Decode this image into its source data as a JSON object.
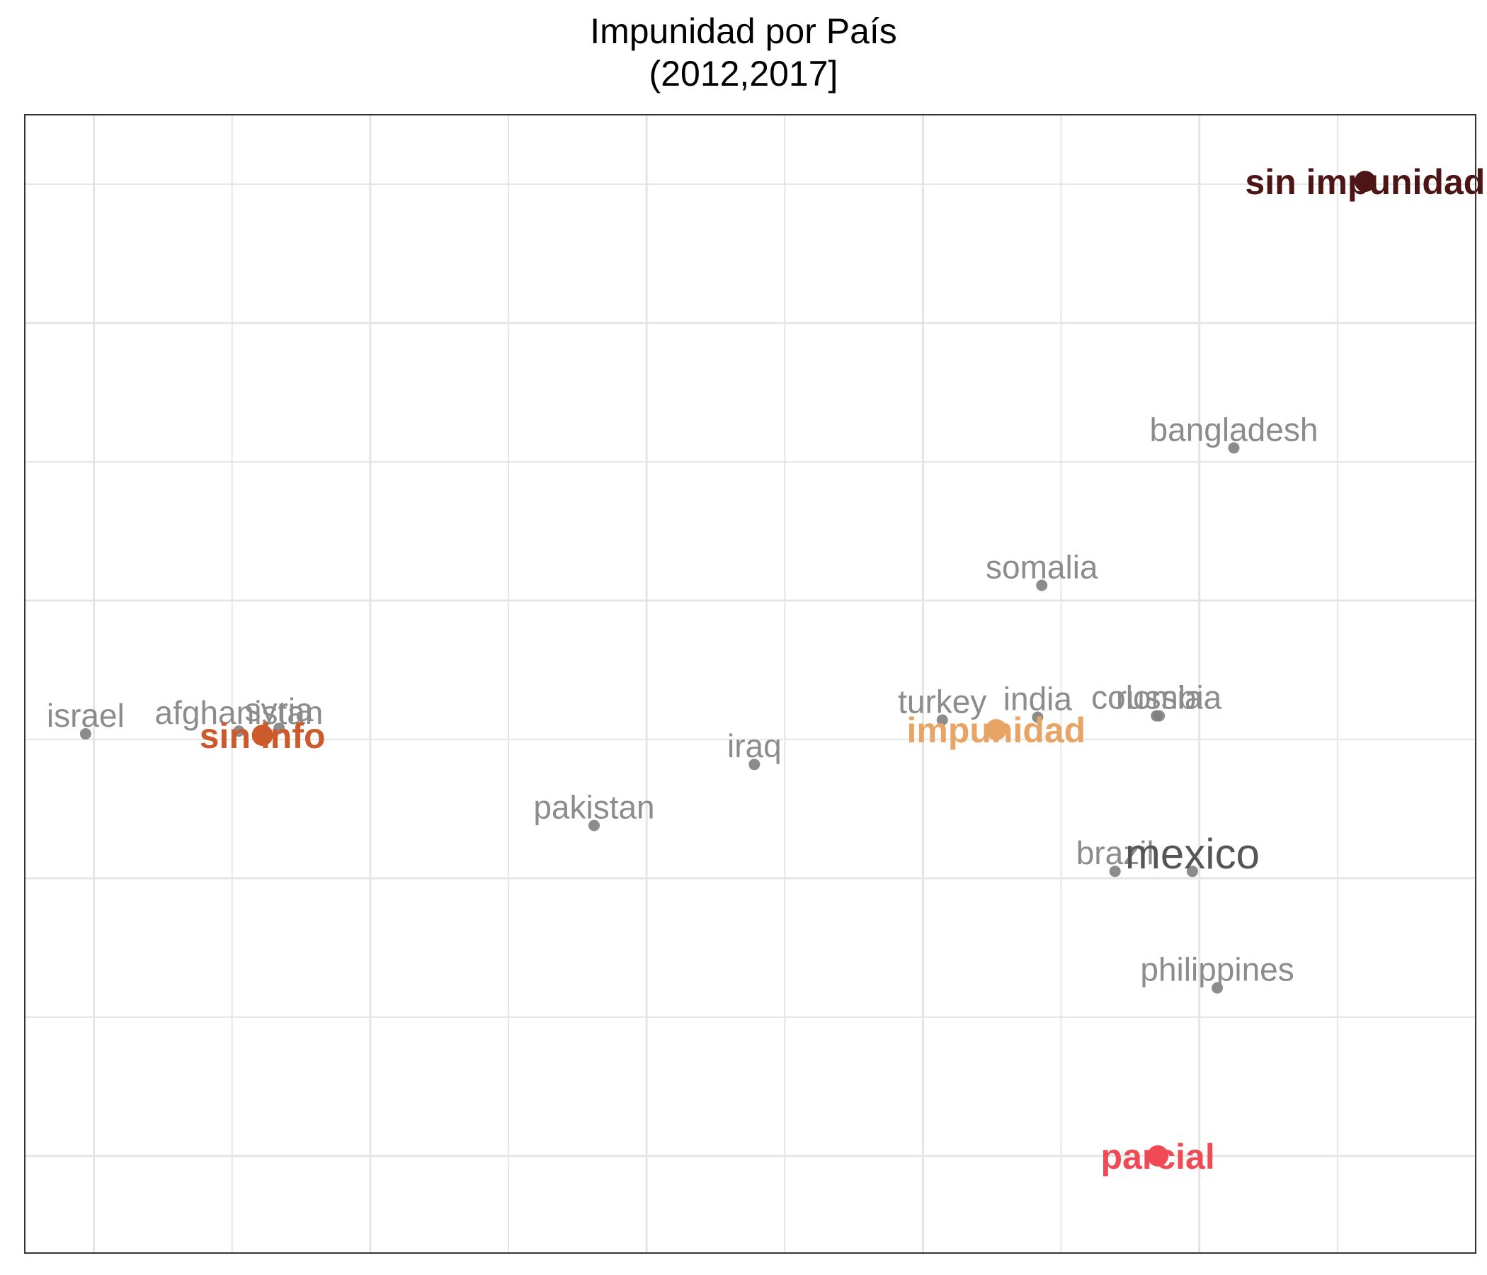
{
  "chart_data": {
    "type": "scatter",
    "title": "Impunidad por País",
    "subtitle": "(2012,2017]",
    "xlabel": "",
    "ylabel": "",
    "grid": true,
    "xlim": [
      -0.05,
      1.0
    ],
    "ylim": [
      -0.02,
      0.8
    ],
    "x_gridlines": [
      0,
      0.1,
      0.2,
      0.3,
      0.4,
      0.5,
      0.6,
      0.7,
      0.8,
      0.9
    ],
    "y_gridlines": [
      0.05,
      0.15,
      0.25,
      0.35,
      0.45,
      0.55,
      0.65,
      0.75
    ],
    "countries": [
      {
        "name": "israel",
        "x": -0.006,
        "y": 0.354,
        "emphasis": false
      },
      {
        "name": "afghanistan",
        "x": 0.105,
        "y": 0.356,
        "emphasis": false
      },
      {
        "name": "syria",
        "x": 0.134,
        "y": 0.358,
        "emphasis": false
      },
      {
        "name": "pakistan",
        "x": 0.362,
        "y": 0.288,
        "emphasis": false
      },
      {
        "name": "iraq",
        "x": 0.478,
        "y": 0.332,
        "emphasis": false
      },
      {
        "name": "turkey",
        "x": 0.614,
        "y": 0.364,
        "emphasis": false
      },
      {
        "name": "india",
        "x": 0.683,
        "y": 0.366,
        "emphasis": false
      },
      {
        "name": "somalia",
        "x": 0.686,
        "y": 0.461,
        "emphasis": false
      },
      {
        "name": "colombia",
        "x": 0.769,
        "y": 0.367,
        "emphasis": false
      },
      {
        "name": "russia",
        "x": 0.771,
        "y": 0.367,
        "emphasis": false
      },
      {
        "name": "bangladesh",
        "x": 0.825,
        "y": 0.56,
        "emphasis": false
      },
      {
        "name": "brazil",
        "x": 0.739,
        "y": 0.255,
        "emphasis": false
      },
      {
        "name": "mexico",
        "x": 0.795,
        "y": 0.255,
        "emphasis": true
      },
      {
        "name": "philippines",
        "x": 0.813,
        "y": 0.171,
        "emphasis": false
      }
    ],
    "categories": [
      {
        "name": "sin impunidad",
        "x": 0.92,
        "y": 0.752,
        "color": "#4e1516"
      },
      {
        "name": "sin info",
        "x": 0.122,
        "y": 0.353,
        "color": "#cc5a2a"
      },
      {
        "name": "impunidad",
        "x": 0.653,
        "y": 0.357,
        "color": "#e8a464"
      },
      {
        "name": "parcial",
        "x": 0.77,
        "y": 0.05,
        "color": "#f04a55"
      }
    ],
    "colors": {
      "country_point": "#808080",
      "country_label": "#8c8c8c",
      "emphasis_label": "#555555",
      "grid": "#e5e5e5",
      "border": "#333333"
    }
  }
}
